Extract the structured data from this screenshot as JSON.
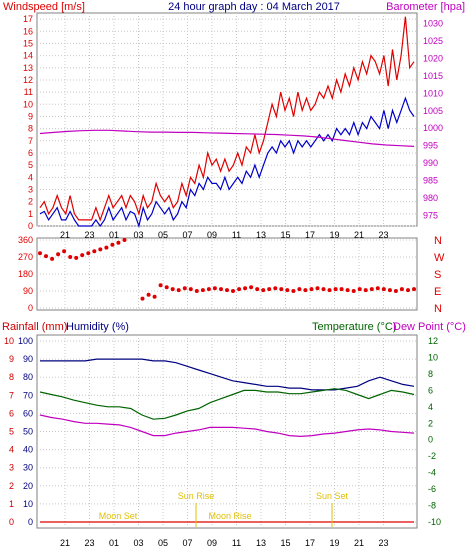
{
  "colors": {
    "red": "#e00000",
    "blue": "#0000c8",
    "magenta": "#c000c0",
    "green": "#006400",
    "navy": "#000080",
    "darkred": "#cc0000",
    "gold": "#e0c000",
    "grid": "#c8c8c8",
    "frame": "#808080"
  },
  "header": {
    "windspeed_label": "Windspeed [m/s]",
    "title": "24 hour graph day : 04 March 2017",
    "barometer_label": "Barometer [hpa]"
  },
  "x_ticks": [
    "21",
    "23",
    "01",
    "03",
    "05",
    "07",
    "09",
    "11",
    "13",
    "15",
    "17",
    "19",
    "21",
    "23"
  ],
  "lower_labels": {
    "rainfall": "Rainfall (mm)",
    "humidity": "Humidity (%)",
    "temperature": "Temperature (°C)",
    "dewpoint": "Dew Point (°C)"
  },
  "sun_moon": {
    "moon_set_1": "Moon Set",
    "sun_rise": "Sun Rise",
    "moon_rise": "Moon Rise",
    "sun_set": "Sun Set"
  },
  "chart_data": [
    {
      "type": "line",
      "title": "24 hour graph day : 04 March 2017",
      "x_labels": [
        "21",
        "23",
        "01",
        "03",
        "05",
        "07",
        "09",
        "11",
        "13",
        "15",
        "17",
        "19",
        "21",
        "23"
      ],
      "ylabel": "Windspeed [m/s]",
      "ylim": [
        0,
        17.5
      ],
      "yticks": [
        0,
        1,
        2,
        3,
        4,
        5,
        6,
        7,
        8,
        9,
        10,
        11,
        12,
        13,
        14,
        15,
        16,
        17
      ],
      "y2label": "Barometer [hpa]",
      "y2lim": [
        972,
        1033
      ],
      "y2ticks": [
        975,
        980,
        985,
        990,
        995,
        1000,
        1005,
        1010,
        1015,
        1020,
        1025,
        1030
      ],
      "series": [
        {
          "name": "Windspeed [m/s]",
          "color": "red",
          "values": [
            1.5,
            2.0,
            1.0,
            1.5,
            2.5,
            1.5,
            1.0,
            2.5,
            1.0,
            0.5,
            0.5,
            0.5,
            0.5,
            1.5,
            0.5,
            1.5,
            2.5,
            1.5,
            2.0,
            2.5,
            1.5,
            2.5,
            2.0,
            1.0,
            2.5,
            1.5,
            2.0,
            3.5,
            2.5,
            2.0,
            2.5,
            1.5,
            2.0,
            3.5,
            2.5,
            4.0,
            3.5,
            5.0,
            4.0,
            6.0,
            5.0,
            5.5,
            4.5,
            5.5,
            4.5,
            5.0,
            6.0,
            5.0,
            6.5,
            6.0,
            7.5,
            6.0,
            7.0,
            8.5,
            10.0,
            9.0,
            11.0,
            9.5,
            10.5,
            9.0,
            11.0,
            9.5,
            10.5,
            9.5,
            10.0,
            11.0,
            10.5,
            11.5,
            10.5,
            12.0,
            11.0,
            12.5,
            11.5,
            13.0,
            12.0,
            13.5,
            12.5,
            14.0,
            13.5,
            12.5,
            14.0,
            11.5,
            14.5,
            12.0,
            14.0,
            17.2,
            13.0,
            13.5
          ]
        },
        {
          "name": "Average windspeed",
          "color": "blue",
          "values": [
            1.0,
            1.2,
            0.5,
            1.0,
            1.5,
            0.5,
            0.5,
            1.2,
            0.5,
            0.0,
            0.0,
            0.0,
            0.0,
            0.5,
            0.0,
            0.5,
            1.5,
            0.5,
            1.0,
            1.5,
            0.5,
            1.2,
            1.0,
            0.0,
            1.5,
            0.5,
            1.0,
            2.0,
            1.5,
            1.0,
            1.5,
            0.5,
            1.0,
            2.0,
            1.5,
            3.0,
            2.5,
            3.5,
            3.0,
            4.0,
            3.5,
            3.5,
            3.0,
            4.0,
            3.0,
            3.5,
            4.0,
            3.5,
            4.5,
            4.0,
            5.0,
            4.0,
            5.0,
            6.0,
            6.5,
            6.0,
            7.0,
            6.5,
            7.0,
            6.0,
            7.0,
            6.5,
            7.0,
            6.5,
            7.0,
            7.5,
            7.0,
            7.5,
            7.0,
            8.0,
            7.5,
            8.0,
            7.5,
            8.5,
            7.5,
            8.5,
            8.0,
            9.0,
            8.5,
            8.0,
            9.5,
            8.0,
            9.5,
            8.5,
            9.5,
            10.5,
            9.5,
            9.0
          ]
        },
        {
          "name": "Barometer [hpa]",
          "axis": "right",
          "color": "magenta",
          "values": [
            998.5,
            998.8,
            999.1,
            999.3,
            999.4,
            999.4,
            999.2,
            999.0,
            998.9,
            998.9,
            998.8,
            998.8,
            998.7,
            998.6,
            998.5,
            998.4,
            998.3,
            998.2,
            998.0,
            997.8,
            997.5,
            997.0,
            996.5,
            996.0,
            995.5,
            995.2,
            995.0,
            994.8
          ]
        }
      ]
    },
    {
      "type": "scatter",
      "ylabel": "Wind direction",
      "yticks": [
        0,
        90,
        180,
        270,
        360
      ],
      "ylim": [
        0,
        360
      ],
      "compass": [
        "N",
        "W",
        "S",
        "E",
        "N"
      ],
      "x_labels": [
        "21",
        "23",
        "01",
        "03",
        "05",
        "07",
        "09",
        "11",
        "13",
        "15",
        "17",
        "19",
        "21",
        "23"
      ],
      "series": [
        {
          "name": "Wind direction",
          "color": "red",
          "values": [
            290,
            275,
            260,
            285,
            300,
            270,
            265,
            280,
            290,
            300,
            310,
            320,
            335,
            345,
            360,
            null,
            null,
            50,
            70,
            60,
            120,
            110,
            100,
            95,
            105,
            100,
            90,
            95,
            100,
            105,
            100,
            95,
            90,
            100,
            105,
            110,
            100,
            95,
            100,
            105,
            100,
            95,
            90,
            100,
            95,
            100,
            105,
            100,
            95,
            100,
            100,
            95,
            90,
            100,
            95,
            100,
            105,
            100,
            95,
            90,
            100,
            95,
            100
          ]
        }
      ]
    },
    {
      "type": "line",
      "x_labels": [
        "21",
        "23",
        "01",
        "03",
        "05",
        "07",
        "09",
        "11",
        "13",
        "15",
        "17",
        "19",
        "21",
        "23"
      ],
      "ylabel": "Rainfall (mm) / Humidity (%)",
      "ylim": [
        0,
        100
      ],
      "yticks_humidity": [
        0,
        10,
        20,
        30,
        40,
        50,
        60,
        70,
        80,
        90,
        100
      ],
      "yticks_rain": [
        0,
        1,
        2,
        3,
        4,
        5,
        6,
        7,
        8,
        9,
        10
      ],
      "y2label": "Temperature (°C) / Dew Point (°C)",
      "y2lim": [
        -10,
        12
      ],
      "y2ticks": [
        -10,
        -8,
        -6,
        -4,
        -2,
        0,
        2,
        4,
        6,
        8,
        10,
        12
      ],
      "series": [
        {
          "name": "Humidity (%)",
          "color": "navy",
          "values": [
            89,
            89,
            89,
            89,
            89,
            90,
            90,
            90,
            90,
            90,
            89,
            89,
            88,
            86,
            84,
            82,
            80,
            78,
            77,
            76,
            75,
            75,
            74,
            74,
            73,
            73,
            73,
            74,
            75,
            78,
            80,
            78,
            76,
            75
          ]
        },
        {
          "name": "Temperature (°C)",
          "axis": "right",
          "color": "green",
          "values": [
            5.8,
            5.5,
            5.2,
            4.8,
            4.5,
            4.2,
            4.0,
            4.0,
            3.8,
            3.0,
            2.5,
            2.6,
            3.0,
            3.5,
            3.8,
            4.5,
            5.0,
            5.5,
            6.0,
            6.0,
            5.8,
            5.8,
            5.6,
            5.6,
            5.8,
            6.0,
            6.2,
            6.0,
            5.5,
            5.0,
            5.5,
            6.0,
            5.8,
            5.5
          ]
        },
        {
          "name": "Dew Point (°C)",
          "axis": "right",
          "color": "magenta",
          "values": [
            3.0,
            2.7,
            2.5,
            2.2,
            2.0,
            2.0,
            1.9,
            1.8,
            1.5,
            1.0,
            0.5,
            0.5,
            0.8,
            1.0,
            1.2,
            1.5,
            1.5,
            1.5,
            1.4,
            1.3,
            1.0,
            0.8,
            0.5,
            0.4,
            0.5,
            0.7,
            0.8,
            1.0,
            1.2,
            1.3,
            1.2,
            1.0,
            0.9,
            0.8
          ]
        },
        {
          "name": "Rainfall (mm)",
          "color": "red",
          "values": [
            0,
            0,
            0,
            0,
            0,
            0,
            0,
            0,
            0,
            0,
            0,
            0,
            0,
            0,
            0,
            0,
            0,
            0,
            0,
            0,
            0,
            0,
            0,
            0,
            0,
            0,
            0,
            0,
            0,
            0,
            0,
            0,
            0,
            0
          ]
        }
      ]
    }
  ]
}
